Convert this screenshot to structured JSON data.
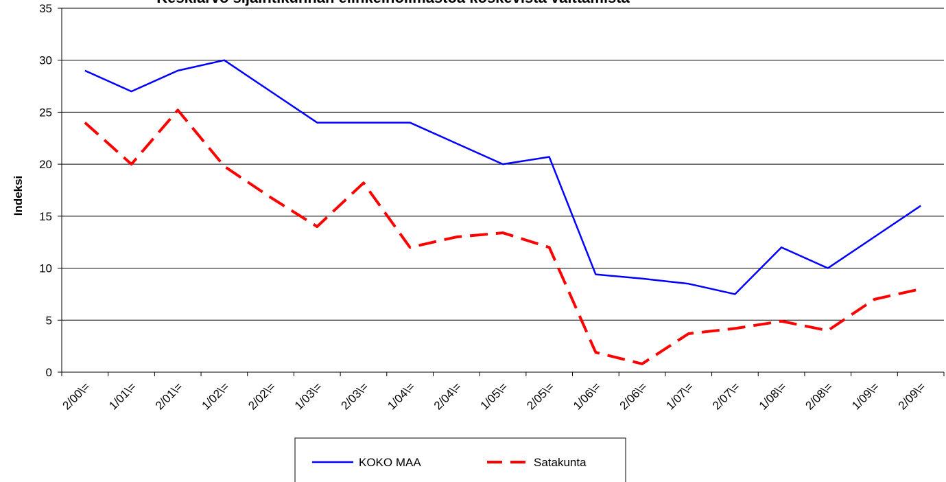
{
  "chart_data": {
    "type": "line",
    "title": "- Keskiarvo sijaintikunnan elinkeinoilmastoa koskevista väittämistä-",
    "y_label": "Indeksi",
    "categories": [
      "2/00\\=",
      "1/01\\=",
      "2/01\\=",
      "1/02\\=",
      "2/02\\=",
      "1/03\\=",
      "2/03\\=",
      "1/04\\=",
      "2/04\\=",
      "1/05\\=",
      "2/05\\=",
      "1/06\\=",
      "2/06\\=",
      "1/07\\=",
      "2/07\\=",
      "1/08\\=",
      "2/08\\=",
      "1/09\\=",
      "2/09\\="
    ],
    "series": [
      {
        "name": "KOKO MAA",
        "color": "#0000ff",
        "dashed": false,
        "values": [
          29,
          27,
          29,
          30,
          27,
          24,
          24,
          24,
          22,
          20,
          20.7,
          9.4,
          9,
          8.5,
          7.5,
          12,
          10,
          13,
          16
        ]
      },
      {
        "name": "Satakunta",
        "color": "#ff0000",
        "dashed": true,
        "values": [
          24,
          20,
          25.2,
          19.8,
          16.8,
          14,
          18.2,
          12,
          13,
          13.4,
          12,
          1.9,
          0.8,
          3.7,
          4.2,
          4.9,
          4,
          7,
          8
        ]
      }
    ],
    "ylim": [
      0,
      35
    ],
    "yticks": [
      0,
      5,
      10,
      15,
      20,
      25,
      30,
      35
    ],
    "grid": true,
    "legend": "bottom"
  }
}
